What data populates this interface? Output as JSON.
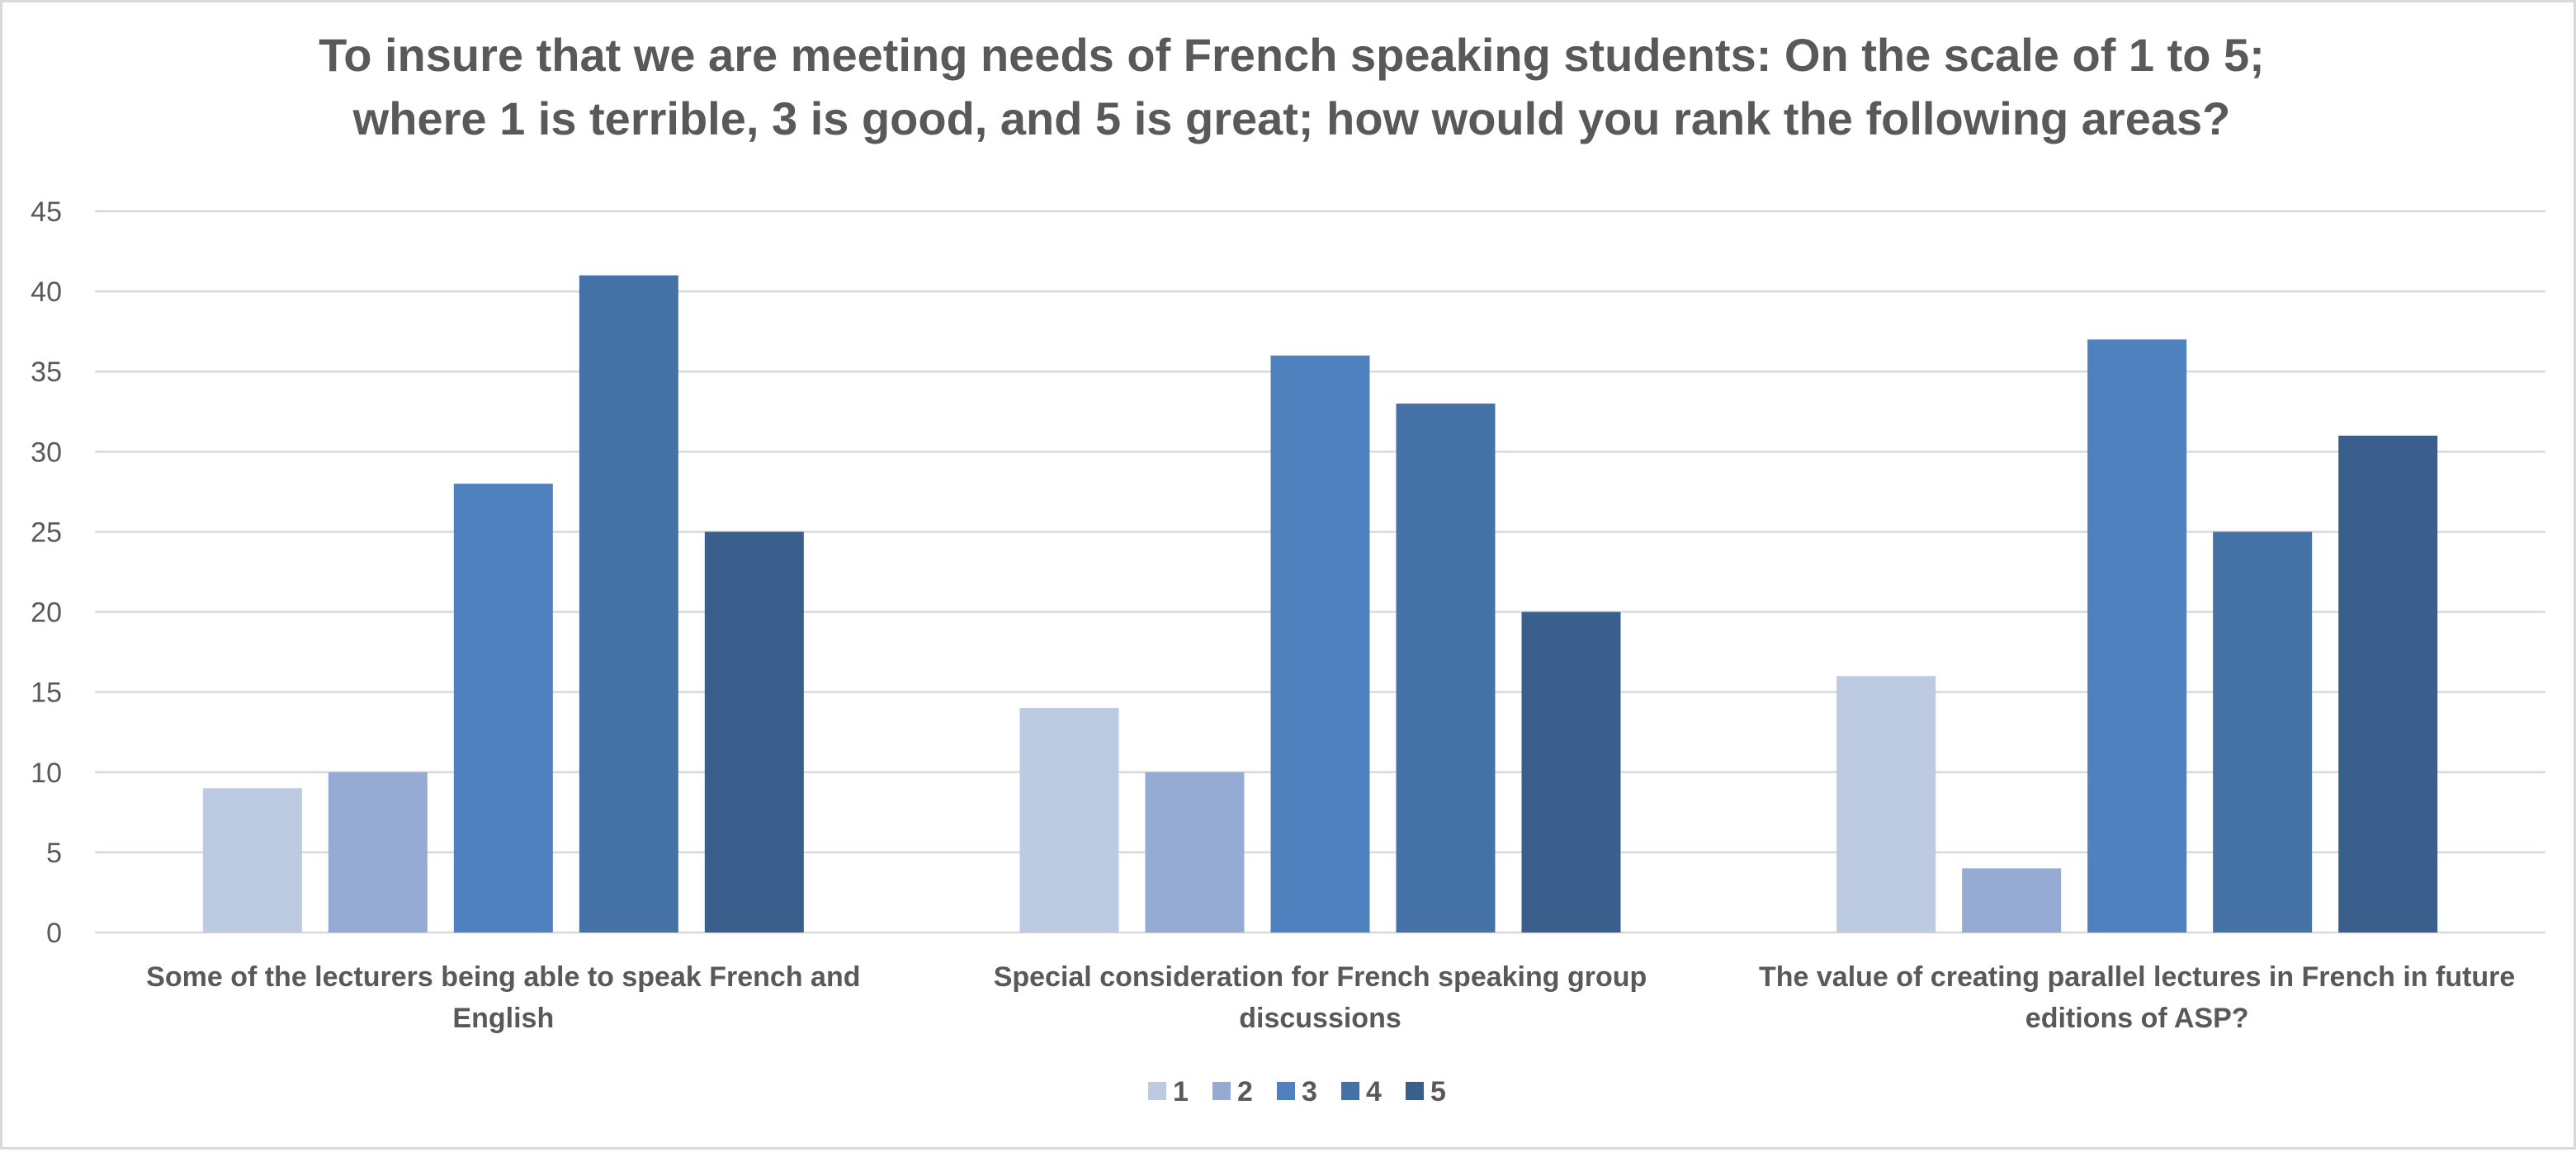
{
  "chart_data": {
    "type": "bar",
    "title": [
      "To insure that we are meeting needs of French speaking students: On the scale of 1 to 5;",
      "where 1 is terrible, 3 is good, and 5 is great; how would you rank the following areas?"
    ],
    "categories": [
      [
        "Some of the lecturers being able to speak French and",
        "English"
      ],
      [
        "Special consideration for French speaking group",
        "discussions"
      ],
      [
        "The value of creating parallel lectures in French in future",
        "editions of ASP?"
      ]
    ],
    "series": [
      {
        "name": "1",
        "color": "#bccae2",
        "values": [
          9,
          14,
          16
        ]
      },
      {
        "name": "2",
        "color": "#95abd4",
        "values": [
          10,
          10,
          4
        ]
      },
      {
        "name": "3",
        "color": "#4e81bd",
        "values": [
          28,
          36,
          37
        ]
      },
      {
        "name": "4",
        "color": "#4472a6",
        "values": [
          41,
          33,
          25
        ]
      },
      {
        "name": "5",
        "color": "#3a5f8c",
        "values": [
          25,
          20,
          31
        ]
      }
    ],
    "ylim": [
      0,
      45
    ],
    "yticks": [
      0,
      5,
      10,
      15,
      20,
      25,
      30,
      35,
      40,
      45
    ],
    "grid": true,
    "legend_position": "bottom"
  }
}
